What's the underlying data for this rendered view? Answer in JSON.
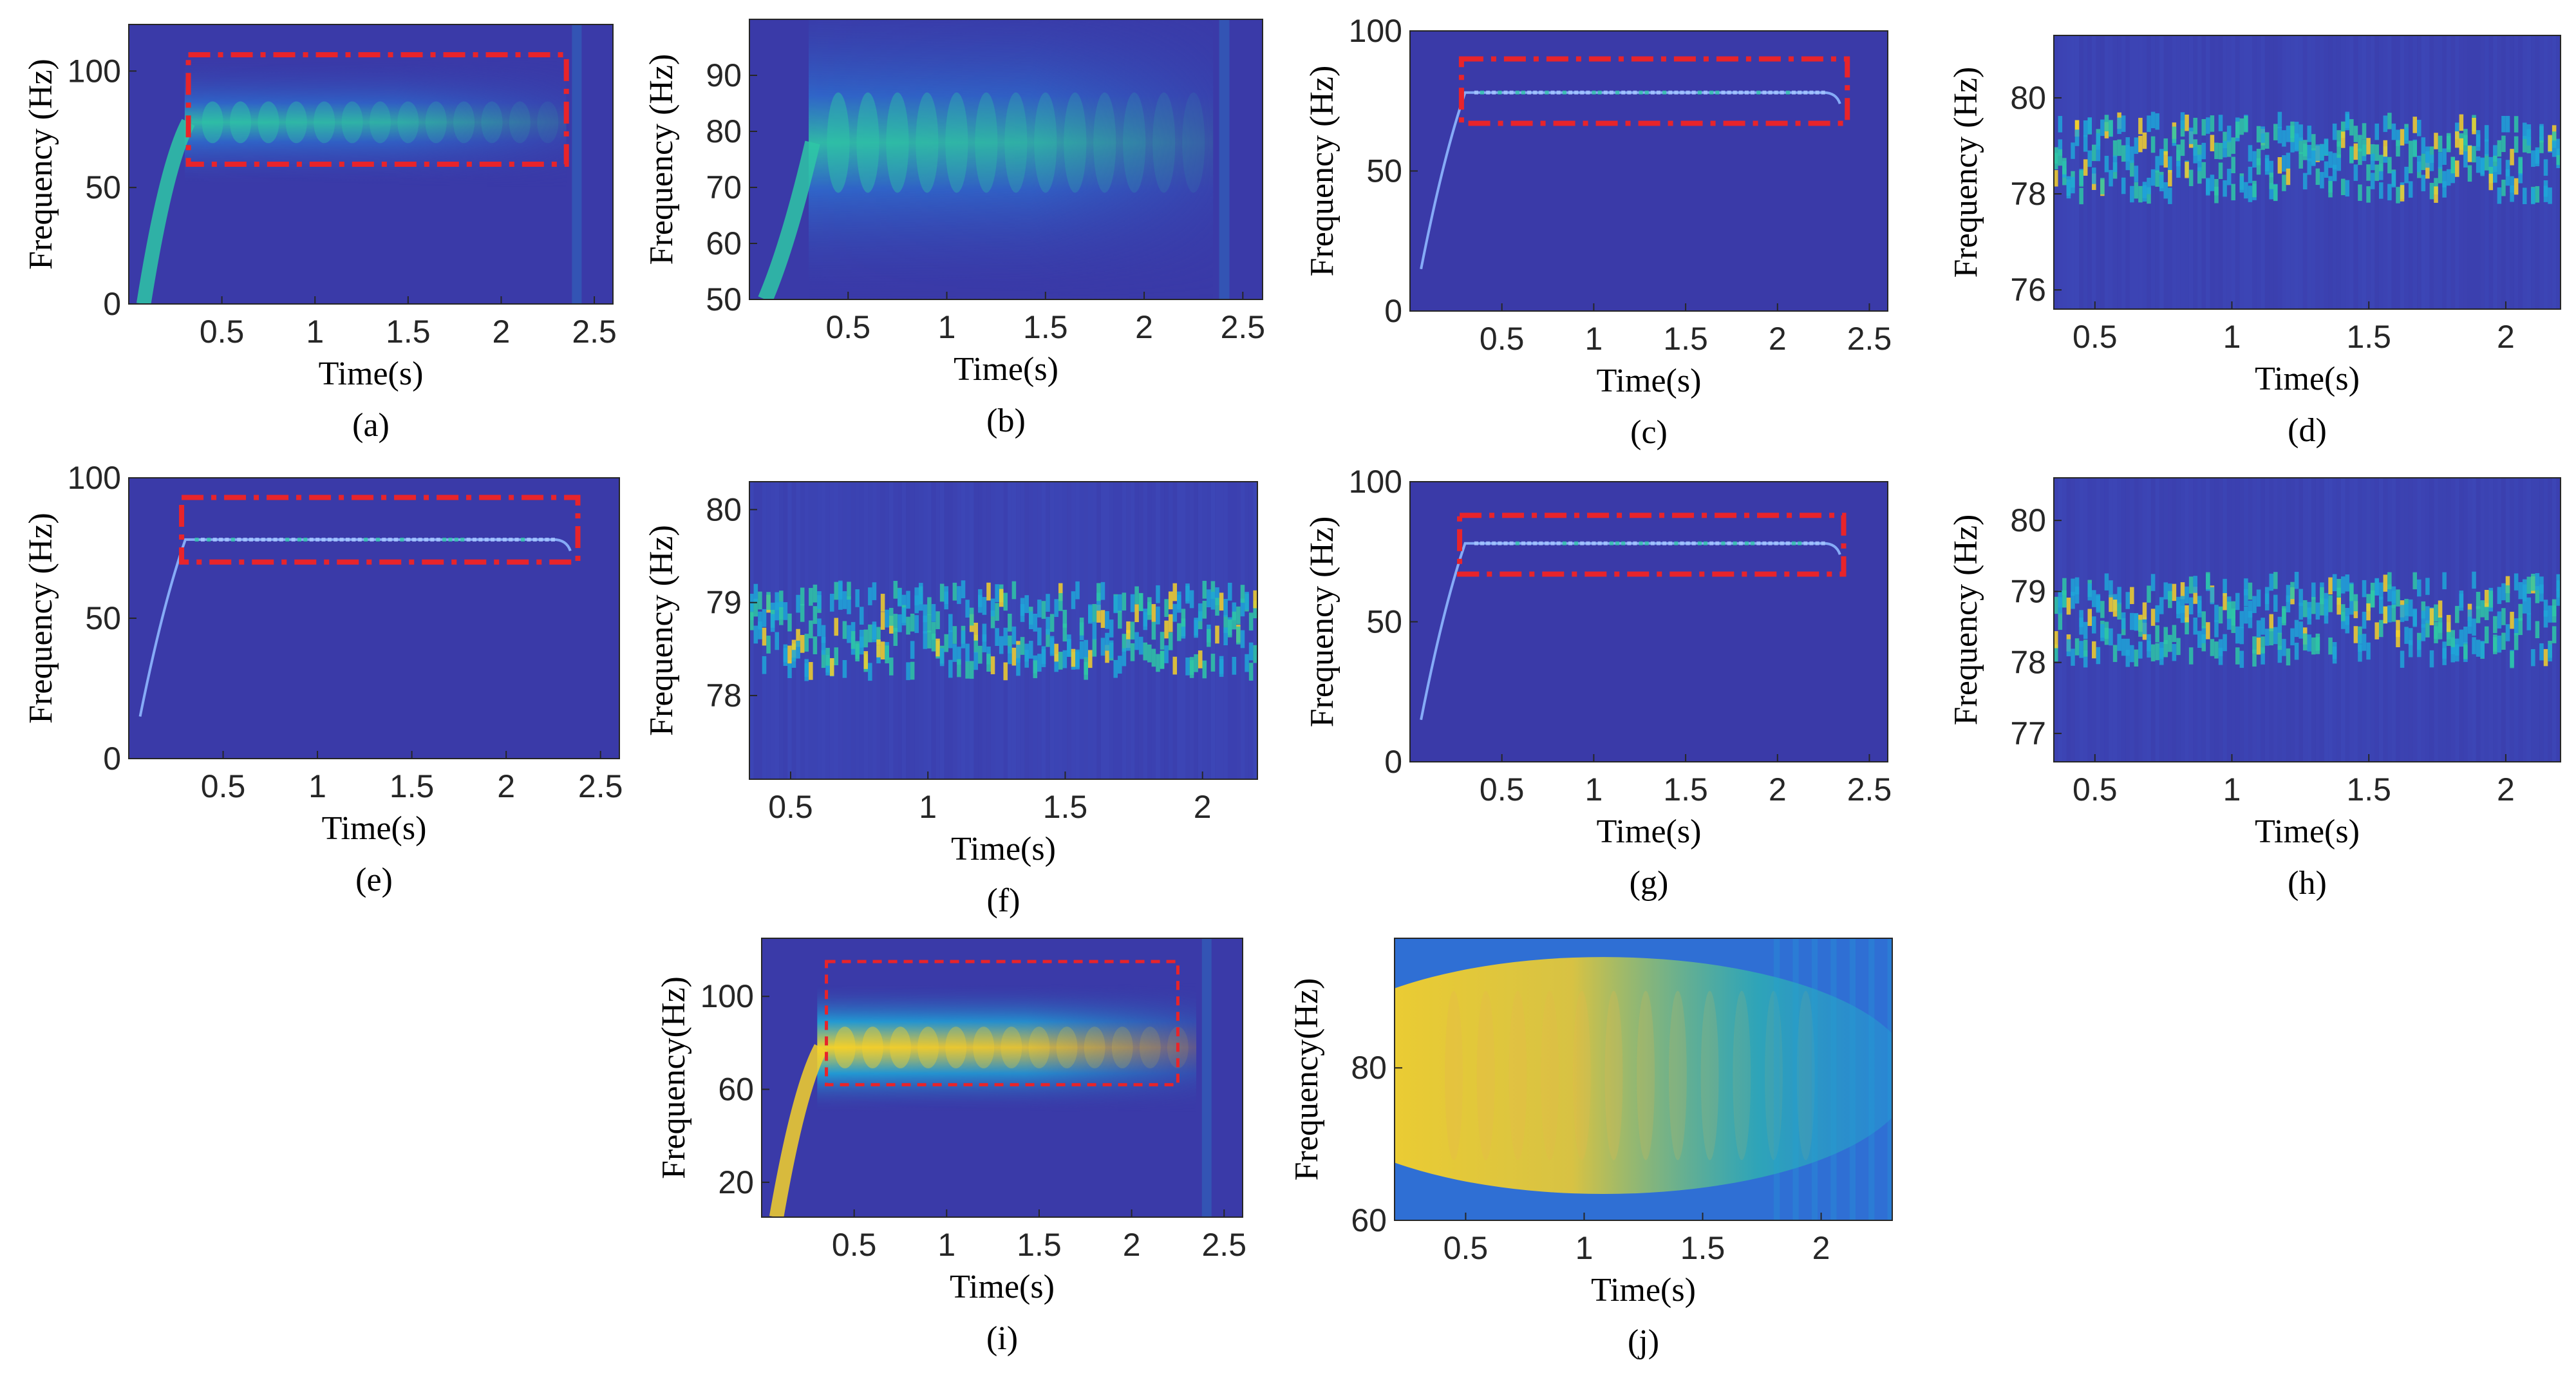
{
  "figure": {
    "colors": {
      "background": "#3a3aa8",
      "ridge_low": "#1fa5d8",
      "ridge_mid": "#2ec7a6",
      "ridge_high": "#f5d12a",
      "box": "#e8242a",
      "axis": "#262626"
    }
  },
  "chart_data": [
    {
      "id": "a",
      "type": "heatmap",
      "caption": "(a)",
      "xlabel": "Time(s)",
      "ylabel": "Frequency (Hz)",
      "xlim": [
        0,
        2.6
      ],
      "ylim": [
        0,
        120
      ],
      "xticks": [
        0.5,
        1,
        1.5,
        2,
        2.5
      ],
      "xtick_labels": [
        "0.5",
        "1",
        "1.5",
        "2",
        "2.5"
      ],
      "yticks": [
        0,
        50,
        100
      ],
      "ytick_labels": [
        "0",
        "50",
        "100"
      ],
      "style": "wide",
      "box": {
        "x": [
          0.32,
          2.35
        ],
        "y": [
          60,
          107
        ],
        "style": "dashdot"
      }
    },
    {
      "id": "b",
      "type": "heatmap",
      "caption": "(b)",
      "xlabel": "Time(s)",
      "ylabel": "Frequency (Hz)",
      "xlim": [
        0,
        2.6
      ],
      "ylim": [
        50,
        100
      ],
      "xticks": [
        0.5,
        1,
        1.5,
        2,
        2.5
      ],
      "xtick_labels": [
        "0.5",
        "1",
        "1.5",
        "2",
        "2.5"
      ],
      "yticks": [
        50,
        60,
        70,
        80,
        90
      ],
      "ytick_labels": [
        "50",
        "60",
        "70",
        "80",
        "90"
      ],
      "style": "wide"
    },
    {
      "id": "c",
      "type": "heatmap",
      "caption": "(c)",
      "xlabel": "Time(s)",
      "ylabel": "Frequency (Hz)",
      "xlim": [
        0,
        2.6
      ],
      "ylim": [
        0,
        100
      ],
      "xticks": [
        0.5,
        1,
        1.5,
        2,
        2.5
      ],
      "xtick_labels": [
        "0.5",
        "1",
        "1.5",
        "2",
        "2.5"
      ],
      "yticks": [
        0,
        50,
        100
      ],
      "ytick_labels": [
        "0",
        "50",
        "100"
      ],
      "style": "line",
      "box": {
        "x": [
          0.28,
          2.38
        ],
        "y": [
          67,
          90
        ],
        "style": "dashdot"
      }
    },
    {
      "id": "d",
      "type": "heatmap",
      "caption": "(d)",
      "xlabel": "Time(s)",
      "ylabel": "Frequency (Hz)",
      "xlim": [
        0.35,
        2.2
      ],
      "ylim": [
        75.6,
        81.3
      ],
      "xticks": [
        0.5,
        1,
        1.5,
        2
      ],
      "xtick_labels": [
        "0.5",
        "1",
        "1.5",
        "2"
      ],
      "yticks": [
        76,
        78,
        80
      ],
      "ytick_labels": [
        "76",
        "78",
        "80"
      ],
      "style": "zoom"
    },
    {
      "id": "e",
      "type": "heatmap",
      "caption": "(e)",
      "xlabel": "Time(s)",
      "ylabel": "Frequency (Hz)",
      "xlim": [
        0,
        2.6
      ],
      "ylim": [
        0,
        100
      ],
      "xticks": [
        0.5,
        1,
        1.5,
        2,
        2.5
      ],
      "xtick_labels": [
        "0.5",
        "1",
        "1.5",
        "2",
        "2.5"
      ],
      "yticks": [
        0,
        50,
        100
      ],
      "ytick_labels": [
        "0",
        "50",
        "100"
      ],
      "style": "line",
      "box": {
        "x": [
          0.28,
          2.38
        ],
        "y": [
          70,
          93
        ],
        "style": "dashdot"
      }
    },
    {
      "id": "f",
      "type": "heatmap",
      "caption": "(f)",
      "xlabel": "Time(s)",
      "ylabel": "Frequency (Hz)",
      "xlim": [
        0.35,
        2.2
      ],
      "ylim": [
        77.1,
        80.3
      ],
      "xticks": [
        0.5,
        1,
        1.5,
        2
      ],
      "xtick_labels": [
        "0.5",
        "1",
        "1.5",
        "2"
      ],
      "yticks": [
        78,
        79,
        80
      ],
      "ytick_labels": [
        "78",
        "79",
        "80"
      ],
      "style": "zoom"
    },
    {
      "id": "g",
      "type": "heatmap",
      "caption": "(g)",
      "xlabel": "Time(s)",
      "ylabel": "Frequency (Hz)",
      "xlim": [
        0,
        2.6
      ],
      "ylim": [
        0,
        100
      ],
      "xticks": [
        0.5,
        1,
        1.5,
        2,
        2.5
      ],
      "xtick_labels": [
        "0.5",
        "1",
        "1.5",
        "2",
        "2.5"
      ],
      "yticks": [
        0,
        50,
        100
      ],
      "ytick_labels": [
        "0",
        "50",
        "100"
      ],
      "style": "line",
      "box": {
        "x": [
          0.27,
          2.36
        ],
        "y": [
          67,
          88
        ],
        "style": "dashdot"
      }
    },
    {
      "id": "h",
      "type": "heatmap",
      "caption": "(h)",
      "xlabel": "Time(s)",
      "ylabel": "Frequency (Hz)",
      "xlim": [
        0.35,
        2.2
      ],
      "ylim": [
        76.6,
        80.6
      ],
      "xticks": [
        0.5,
        1,
        1.5,
        2
      ],
      "xtick_labels": [
        "0.5",
        "1",
        "1.5",
        "2"
      ],
      "yticks": [
        77,
        78,
        79,
        80
      ],
      "ytick_labels": [
        "77",
        "78",
        "79",
        "80"
      ],
      "style": "zoom"
    },
    {
      "id": "i",
      "type": "heatmap",
      "caption": "(i)",
      "xlabel": "Time(s)",
      "ylabel": "Frequency(Hz)",
      "xlim": [
        0,
        2.6
      ],
      "ylim": [
        5,
        125
      ],
      "xticks": [
        0.5,
        1,
        1.5,
        2,
        2.5
      ],
      "xtick_labels": [
        "0.5",
        "1",
        "1.5",
        "2",
        "2.5"
      ],
      "yticks": [
        20,
        60,
        100
      ],
      "ytick_labels": [
        "20",
        "60",
        "100"
      ],
      "style": "wide-bright",
      "box": {
        "x": [
          0.35,
          2.25
        ],
        "y": [
          62,
          115
        ],
        "style": "dashed"
      }
    },
    {
      "id": "j",
      "type": "heatmap",
      "caption": "(j)",
      "xlabel": "Time(s)",
      "ylabel": "Frequency(Hz)",
      "xlim": [
        0.2,
        2.3
      ],
      "ylim": [
        60,
        97
      ],
      "xticks": [
        0.5,
        1,
        1.5,
        2
      ],
      "xtick_labels": [
        "0.5",
        "1",
        "1.5",
        "2"
      ],
      "yticks": [
        60,
        80
      ],
      "ytick_labels": [
        "60",
        "80"
      ],
      "style": "zoom-bright"
    }
  ]
}
